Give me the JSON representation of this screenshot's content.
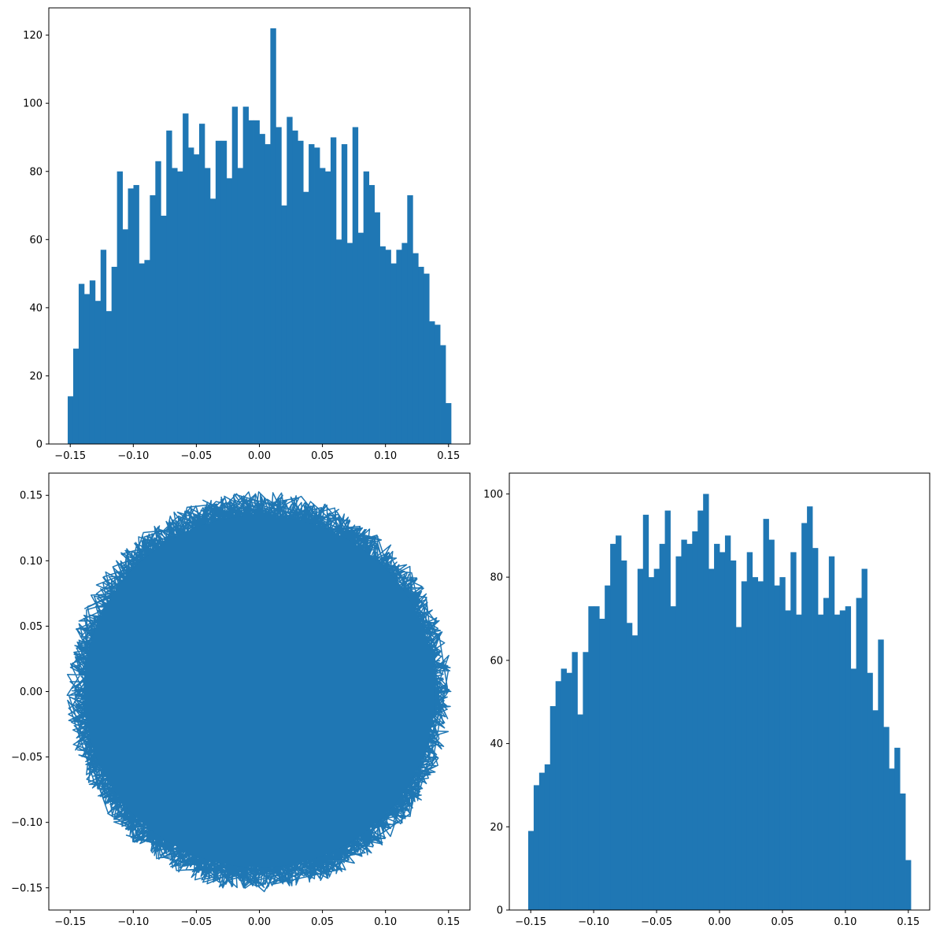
{
  "chart_data": [
    {
      "type": "bar",
      "subtype": "histogram",
      "position": "top-left",
      "color": "#1f77b4",
      "bin_range": [
        -0.152,
        0.152
      ],
      "counts": [
        14,
        28,
        47,
        44,
        48,
        42,
        57,
        39,
        52,
        80,
        63,
        75,
        76,
        53,
        54,
        73,
        83,
        67,
        92,
        81,
        80,
        97,
        87,
        85,
        94,
        81,
        72,
        89,
        89,
        78,
        99,
        81,
        99,
        95,
        95,
        91,
        88,
        122,
        93,
        70,
        96,
        92,
        89,
        74,
        88,
        87,
        81,
        80,
        90,
        60,
        88,
        59,
        93,
        62,
        80,
        76,
        68,
        58,
        57,
        53,
        57,
        59,
        73,
        56,
        52,
        50,
        36,
        35,
        29,
        12
      ],
      "xlim": [
        -0.167,
        0.167
      ],
      "ylim": [
        0,
        128
      ],
      "xticks": [
        -0.15,
        -0.1,
        -0.05,
        0.0,
        0.05,
        0.1,
        0.15
      ],
      "xtick_labels": [
        "−0.15",
        "−0.10",
        "−0.05",
        "0.00",
        "0.05",
        "0.10",
        "0.15"
      ],
      "yticks": [
        0,
        20,
        40,
        60,
        80,
        100,
        120
      ],
      "ytick_labels": [
        "0",
        "20",
        "40",
        "60",
        "80",
        "100",
        "120"
      ]
    },
    {
      "type": "line",
      "position": "bottom-left",
      "color": "#1f77b4",
      "shape": "dense trajectory filling a disk",
      "radius": 0.15,
      "xlim": [
        -0.167,
        0.167
      ],
      "ylim": [
        -0.167,
        0.167
      ],
      "xticks": [
        -0.15,
        -0.1,
        -0.05,
        0.0,
        0.05,
        0.1,
        0.15
      ],
      "xtick_labels": [
        "−0.15",
        "−0.10",
        "−0.05",
        "0.00",
        "0.05",
        "0.10",
        "0.15"
      ],
      "yticks": [
        -0.15,
        -0.1,
        -0.05,
        0.0,
        0.05,
        0.1,
        0.15
      ],
      "ytick_labels": [
        "−0.15",
        "−0.10",
        "−0.05",
        "0.00",
        "0.05",
        "0.10",
        "0.15"
      ]
    },
    {
      "type": "bar",
      "subtype": "histogram",
      "position": "bottom-right",
      "color": "#1f77b4",
      "bin_range": [
        -0.152,
        0.152
      ],
      "counts": [
        19,
        30,
        33,
        35,
        49,
        55,
        58,
        57,
        62,
        47,
        62,
        73,
        73,
        70,
        78,
        88,
        90,
        84,
        69,
        66,
        82,
        95,
        80,
        82,
        88,
        96,
        73,
        85,
        89,
        88,
        91,
        96,
        100,
        82,
        88,
        86,
        90,
        84,
        68,
        79,
        86,
        80,
        79,
        94,
        89,
        78,
        80,
        72,
        86,
        71,
        93,
        97,
        87,
        71,
        75,
        85,
        71,
        72,
        73,
        58,
        75,
        82,
        57,
        48,
        65,
        44,
        34,
        39,
        28,
        12
      ],
      "xlim": [
        -0.167,
        0.167
      ],
      "ylim": [
        0,
        105
      ],
      "xticks": [
        -0.15,
        -0.1,
        -0.05,
        0.0,
        0.05,
        0.1,
        0.15
      ],
      "xtick_labels": [
        "−0.15",
        "−0.10",
        "−0.05",
        "0.00",
        "0.05",
        "0.10",
        "0.15"
      ],
      "yticks": [
        0,
        20,
        40,
        60,
        80,
        100
      ],
      "ytick_labels": [
        "0",
        "20",
        "40",
        "60",
        "80",
        "100"
      ]
    }
  ]
}
